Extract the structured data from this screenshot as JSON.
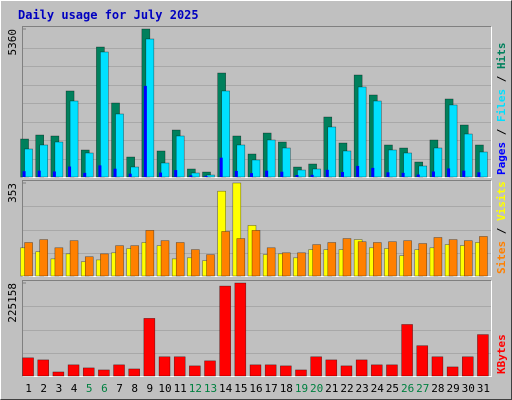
{
  "chart_data": [
    {
      "type": "bar",
      "title": "Daily usage for July 2025",
      "legend_separator": " / ",
      "categories": [
        "1",
        "2",
        "3",
        "4",
        "5",
        "6",
        "7",
        "8",
        "9",
        "10",
        "11",
        "12",
        "13",
        "14",
        "15",
        "16",
        "17",
        "18",
        "19",
        "20",
        "21",
        "22",
        "23",
        "24",
        "25",
        "26",
        "27",
        "28",
        "29",
        "30",
        "31"
      ],
      "category_colors": [
        "#000000",
        "#000000",
        "#000000",
        "#000000",
        "#008040",
        "#008040",
        "#000000",
        "#000000",
        "#000000",
        "#000000",
        "#000000",
        "#008040",
        "#008040",
        "#000000",
        "#000000",
        "#000000",
        "#000000",
        "#000000",
        "#008040",
        "#008040",
        "#000000",
        "#000000",
        "#000000",
        "#000000",
        "#000000",
        "#008040",
        "#008040",
        "#000000",
        "#000000",
        "#000000",
        "#000000"
      ],
      "ylim": [
        0,
        5360
      ],
      "yticks": [
        5360
      ],
      "series": [
        {
          "name": "Pages",
          "color": "#0000ff",
          "values": [
            210,
            230,
            200,
            380,
            150,
            420,
            300,
            120,
            3300,
            160,
            250,
            60,
            40,
            700,
            220,
            140,
            230,
            190,
            70,
            80,
            260,
            180,
            400,
            330,
            170,
            150,
            90,
            200,
            310,
            230,
            170
          ]
        },
        {
          "name": "Files",
          "color": "#00e0ff",
          "values": [
            1014,
            1159,
            1267,
            2752,
            869,
            4527,
            2282,
            362,
            4998,
            507,
            1485,
            145,
            72,
            3115,
            1159,
            616,
            1340,
            1050,
            253,
            290,
            1811,
            942,
            3260,
            2752,
            978,
            869,
            398,
            1050,
            2608,
            1557,
            905
          ]
        },
        {
          "name": "Hits",
          "color": "#00805c",
          "values": [
            1376,
            1521,
            1485,
            3115,
            978,
            4708,
            2680,
            724,
            5360,
            942,
            1702,
            290,
            181,
            3766,
            1485,
            833,
            1593,
            1267,
            362,
            471,
            2173,
            1231,
            3694,
            2970,
            1159,
            1050,
            543,
            1340,
            2825,
            1883,
            1159
          ]
        }
      ]
    },
    {
      "type": "bar",
      "ylim": [
        0,
        353
      ],
      "yticks": [
        353
      ],
      "series": [
        {
          "name": "Sites",
          "color": "#ff8000",
          "values": [
            127,
            138,
            107,
            134,
            73,
            84,
            115,
            115,
            173,
            134,
            127,
            100,
            81,
            169,
            142,
            173,
            107,
            88,
            88,
            119,
            127,
            142,
            130,
            127,
            130,
            134,
            123,
            146,
            138,
            134,
            150
          ]
        },
        {
          "name": "Visits",
          "color": "#ffff00",
          "values": [
            107,
            92,
            65,
            84,
            54,
            61,
            88,
            104,
            127,
            115,
            65,
            69,
            58,
            322,
            353,
            192,
            81,
            84,
            69,
            100,
            100,
            100,
            138,
            107,
            104,
            77,
            100,
            107,
            119,
            115,
            127
          ]
        }
      ]
    },
    {
      "type": "bar",
      "ylim": [
        0,
        225158
      ],
      "yticks": [
        225158
      ],
      "series": [
        {
          "name": "KBytes",
          "color": "#ff0000",
          "values": [
            44000,
            39000,
            9800,
            27000,
            19600,
            14700,
            27000,
            17100,
            139500,
            46500,
            46500,
            24500,
            36700,
            217800,
            225158,
            27000,
            27000,
            24500,
            14700,
            46500,
            39000,
            24500,
            39000,
            27000,
            27000,
            124800,
            73400,
            46500,
            22000,
            46500,
            100300
          ]
        }
      ]
    }
  ]
}
